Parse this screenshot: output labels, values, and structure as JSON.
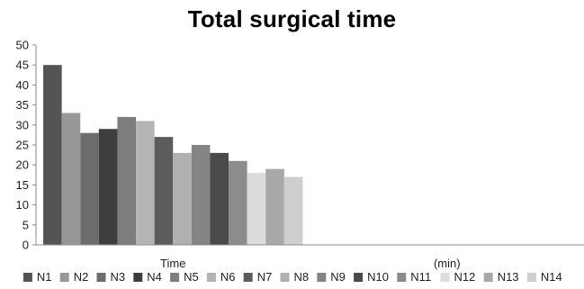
{
  "chart_data": {
    "type": "bar",
    "title": "Total surgical time",
    "categories": [
      "Time",
      "(min)"
    ],
    "ylim": [
      0,
      50
    ],
    "yticks": [
      0,
      5,
      10,
      15,
      20,
      25,
      30,
      35,
      40,
      45,
      50
    ],
    "grid": false,
    "legend": "bottom",
    "series": [
      {
        "name": "N1",
        "values": [
          45,
          null
        ],
        "color": "#545454"
      },
      {
        "name": "N2",
        "values": [
          33,
          null
        ],
        "color": "#979797"
      },
      {
        "name": "N3",
        "values": [
          28,
          null
        ],
        "color": "#6c6c6c"
      },
      {
        "name": "N4",
        "values": [
          29,
          null
        ],
        "color": "#3e3e3e"
      },
      {
        "name": "N5",
        "values": [
          32,
          null
        ],
        "color": "#7d7d7d"
      },
      {
        "name": "N6",
        "values": [
          31,
          null
        ],
        "color": "#b4b4b4"
      },
      {
        "name": "N7",
        "values": [
          27,
          null
        ],
        "color": "#5c5c5c"
      },
      {
        "name": "N8",
        "values": [
          23,
          null
        ],
        "color": "#b0b0b0"
      },
      {
        "name": "N9",
        "values": [
          25,
          null
        ],
        "color": "#848484"
      },
      {
        "name": "N10",
        "values": [
          23,
          null
        ],
        "color": "#4a4a4a"
      },
      {
        "name": "N11",
        "values": [
          21,
          null
        ],
        "color": "#8c8c8c"
      },
      {
        "name": "N12",
        "values": [
          18,
          null
        ],
        "color": "#dcdcdc"
      },
      {
        "name": "N13",
        "values": [
          19,
          null
        ],
        "color": "#a8a8a8"
      },
      {
        "name": "N14",
        "values": [
          17,
          null
        ],
        "color": "#cecece"
      }
    ]
  }
}
